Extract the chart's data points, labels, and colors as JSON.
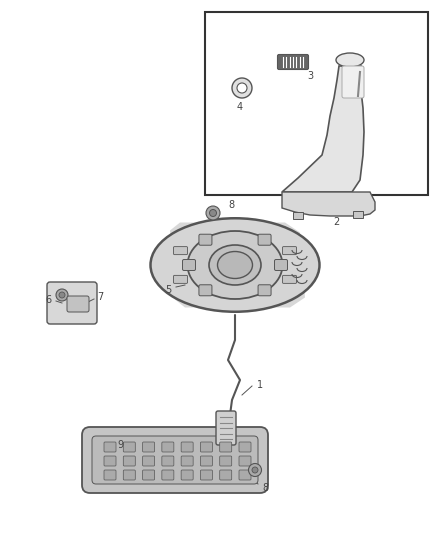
{
  "bg_color": "#ffffff",
  "line_color": "#555555",
  "dark_color": "#333333",
  "label_color": "#444444",
  "fig_width": 4.38,
  "fig_height": 5.33,
  "dpi": 100
}
